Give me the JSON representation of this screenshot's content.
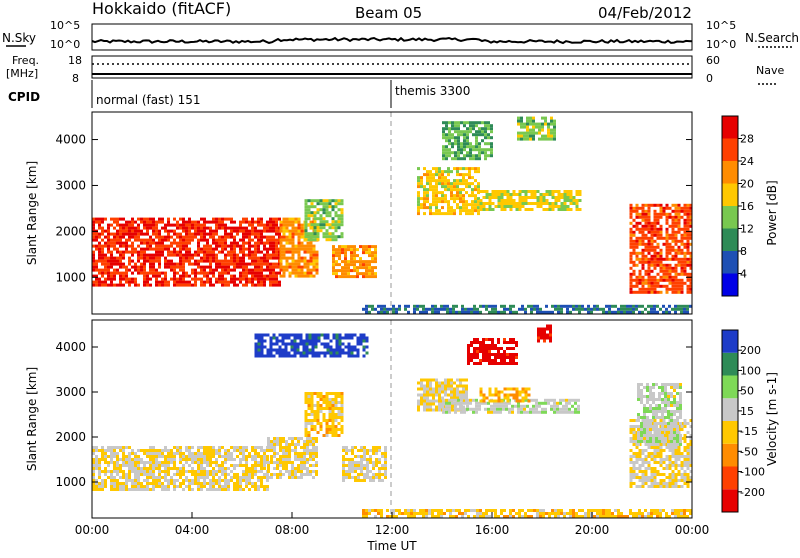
{
  "header": {
    "station": "Hokkaido (fitACF)",
    "beam": "Beam 05",
    "date": "04/Feb/2012"
  },
  "panels": {
    "noise": {
      "left_label": "N.Sky",
      "right_label": "N.Search",
      "left_ticks": [
        "10^5",
        "10^0"
      ],
      "right_ticks": [
        "10^5",
        "10^0"
      ]
    },
    "freq": {
      "left_label_1": "Freq.",
      "left_label_2": "[MHz]",
      "left_ticks": [
        "18",
        "8"
      ],
      "right_ticks": [
        "60",
        "0"
      ],
      "right_label": "Nave"
    },
    "cpid": {
      "label": "CPID",
      "modes": [
        {
          "name": "normal (fast) 151",
          "start_hour": 0
        },
        {
          "name": "themis 3300",
          "start_hour": 12
        }
      ]
    }
  },
  "chart_data": [
    {
      "type": "heatmap",
      "name": "power",
      "xlabel": "",
      "ylabel": "Slant Range [km]",
      "xlim": [
        0,
        24
      ],
      "ylim": [
        200,
        4600
      ],
      "y_ticks": [
        "1000",
        "2000",
        "3000",
        "4000"
      ],
      "colorbar": {
        "label": "Power [dB]",
        "ticks": [
          "4",
          "8",
          "12",
          "16",
          "20",
          "24",
          "28"
        ],
        "range": [
          0,
          32
        ],
        "colors": [
          "#0000e6",
          "#1e50b4",
          "#2e8b57",
          "#78c850",
          "#ffc800",
          "#ff8c00",
          "#ff4000",
          "#e60000"
        ]
      },
      "regions": [
        {
          "t0": 0.0,
          "t1": 7.5,
          "r0": 800,
          "r1": 2300,
          "value": 28
        },
        {
          "t0": 7.5,
          "t1": 9.0,
          "r0": 1000,
          "r1": 2300,
          "value": 22
        },
        {
          "t0": 8.5,
          "t1": 10.0,
          "r0": 1800,
          "r1": 2700,
          "value": 14
        },
        {
          "t0": 9.6,
          "t1": 11.4,
          "r0": 1000,
          "r1": 1700,
          "value": 22
        },
        {
          "t0": 13.0,
          "t1": 15.5,
          "r0": 2400,
          "r1": 3400,
          "value": 18
        },
        {
          "t0": 15.5,
          "t1": 19.5,
          "r0": 2500,
          "r1": 2900,
          "value": 17
        },
        {
          "t0": 14.0,
          "t1": 16.0,
          "r0": 3600,
          "r1": 4400,
          "value": 12
        },
        {
          "t0": 17.0,
          "t1": 18.5,
          "r0": 4000,
          "r1": 4500,
          "value": 14
        },
        {
          "t0": 21.5,
          "t1": 24.0,
          "r0": 700,
          "r1": 2600,
          "value": 26
        },
        {
          "t0": 10.8,
          "t1": 24.0,
          "r0": 250,
          "r1": 400,
          "value": 8
        }
      ]
    },
    {
      "type": "heatmap",
      "name": "velocity",
      "xlabel": "Time UT",
      "ylabel": "Slant Range [km]",
      "xlim": [
        0,
        24
      ],
      "ylim": [
        200,
        4600
      ],
      "x_ticks": [
        "00:00",
        "04:00",
        "08:00",
        "12:00",
        "16:00",
        "20:00",
        "00:00"
      ],
      "y_ticks": [
        "1000",
        "2000",
        "3000",
        "4000"
      ],
      "colorbar": {
        "label": "Velocity [m s-1]",
        "ticks": [
          "200",
          "100",
          "50",
          "15",
          "-15",
          "-50",
          "-100",
          "-200"
        ],
        "range": [
          -250,
          250
        ],
        "colors": [
          "#1e3cc8",
          "#2e8b57",
          "#7ed957",
          "#c8c8c8",
          "#ffc800",
          "#ff8c00",
          "#ff4000",
          "#e60000"
        ]
      },
      "regions": [
        {
          "t0": 0.0,
          "t1": 7.0,
          "r0": 800,
          "r1": 1800,
          "value": 0
        },
        {
          "t0": 7.0,
          "t1": 9.0,
          "r0": 1100,
          "r1": 2000,
          "value": 0
        },
        {
          "t0": 8.5,
          "t1": 10.0,
          "r0": 2000,
          "r1": 3000,
          "value": -30
        },
        {
          "t0": 10.0,
          "t1": 11.8,
          "r0": 1000,
          "r1": 1800,
          "value": 0
        },
        {
          "t0": 6.5,
          "t1": 11.0,
          "r0": 3800,
          "r1": 4300,
          "value": 220
        },
        {
          "t0": 13.0,
          "t1": 15.0,
          "r0": 2600,
          "r1": 3300,
          "value": 0
        },
        {
          "t0": 14.0,
          "t1": 19.5,
          "r0": 2550,
          "r1": 2850,
          "value": 40
        },
        {
          "t0": 15.0,
          "t1": 17.0,
          "r0": 3600,
          "r1": 4200,
          "value": -220
        },
        {
          "t0": 17.8,
          "t1": 18.3,
          "r0": 4100,
          "r1": 4500,
          "value": -220
        },
        {
          "t0": 15.5,
          "t1": 17.5,
          "r0": 2800,
          "r1": 3100,
          "value": -60
        },
        {
          "t0": 21.5,
          "t1": 24.0,
          "r0": 900,
          "r1": 2400,
          "value": 0
        },
        {
          "t0": 21.8,
          "t1": 23.5,
          "r0": 1800,
          "r1": 3200,
          "value": 40
        },
        {
          "t0": 10.8,
          "t1": 24.0,
          "r0": 250,
          "r1": 400,
          "value": -30
        }
      ]
    }
  ]
}
